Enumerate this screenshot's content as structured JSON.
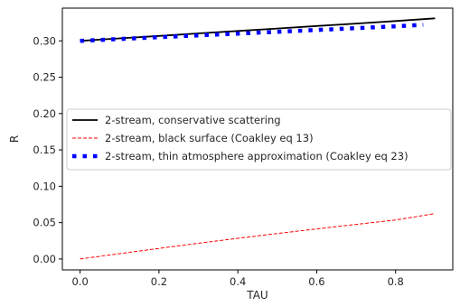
{
  "chart_data": {
    "type": "line",
    "title": "",
    "xlabel": "TAU",
    "ylabel": "R",
    "xlim": [
      -0.045,
      0.945
    ],
    "ylim": [
      -0.015,
      0.345
    ],
    "xticks": [
      0.0,
      0.2,
      0.4,
      0.6,
      0.8
    ],
    "xtick_labels": [
      "0.0",
      "0.2",
      "0.4",
      "0.6",
      "0.8"
    ],
    "yticks": [
      0.0,
      0.05,
      0.1,
      0.15,
      0.2,
      0.25,
      0.3
    ],
    "ytick_labels": [
      "0.00",
      "0.05",
      "0.10",
      "0.15",
      "0.20",
      "0.25",
      "0.30"
    ],
    "grid": false,
    "legend_position": "center-left",
    "series": [
      {
        "name": "2-stream, conservative scattering",
        "style": "solid",
        "color": "#000000",
        "x": [
          0.0,
          0.1,
          0.2,
          0.3,
          0.4,
          0.5,
          0.6,
          0.7,
          0.8,
          0.9
        ],
        "values": [
          0.3,
          0.3034,
          0.3068,
          0.3102,
          0.3136,
          0.317,
          0.3204,
          0.3238,
          0.3272,
          0.331
        ]
      },
      {
        "name": "2-stream, black surface (Coakley eq 13)",
        "style": "dashed",
        "color": "#ff0000",
        "x": [
          0.0,
          0.1,
          0.2,
          0.3,
          0.4,
          0.5,
          0.6,
          0.7,
          0.8,
          0.9
        ],
        "values": [
          0.0,
          0.0074,
          0.0146,
          0.0216,
          0.0284,
          0.035,
          0.0414,
          0.0476,
          0.0536,
          0.0625
        ]
      },
      {
        "name": "2-stream, thin atmosphere approximation (Coakley eq 23)",
        "style": "dotted",
        "color": "#0000ff",
        "x": [
          0.0,
          0.1,
          0.2,
          0.3,
          0.4,
          0.5,
          0.6,
          0.7,
          0.8,
          0.87
        ],
        "values": [
          0.3,
          0.3025,
          0.305,
          0.3075,
          0.31,
          0.3125,
          0.315,
          0.3175,
          0.32,
          0.3222
        ]
      }
    ]
  }
}
